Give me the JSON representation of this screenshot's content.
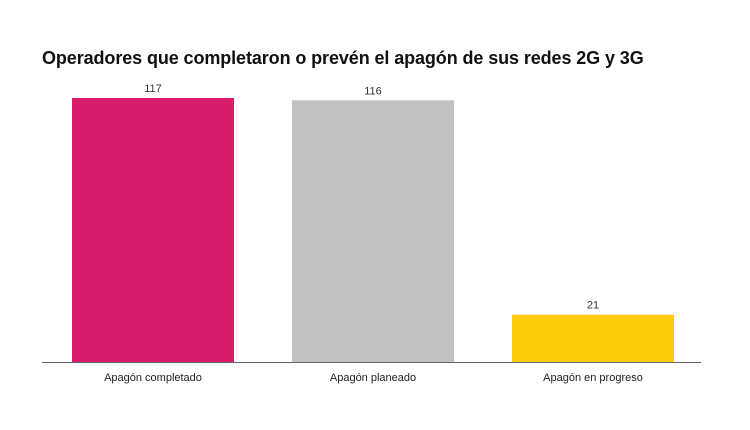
{
  "chart_data": {
    "type": "bar",
    "title": "Operadores que completaron o prevén el apagón de sus redes 2G y 3G",
    "categories": [
      "Apagón completado",
      "Apagón planeado",
      "Apagón en progreso"
    ],
    "values": [
      117,
      116,
      21
    ],
    "value_labels": [
      "117",
      "116",
      "21"
    ],
    "colors": [
      "#d81b6a",
      "#c2c2c2",
      "#fccc0a"
    ],
    "xlabel": "",
    "ylabel": "",
    "ylim": [
      0,
      117
    ],
    "grid": false,
    "legend": "none"
  },
  "colors": {
    "axis": "#666666",
    "title_text": "#111111"
  }
}
